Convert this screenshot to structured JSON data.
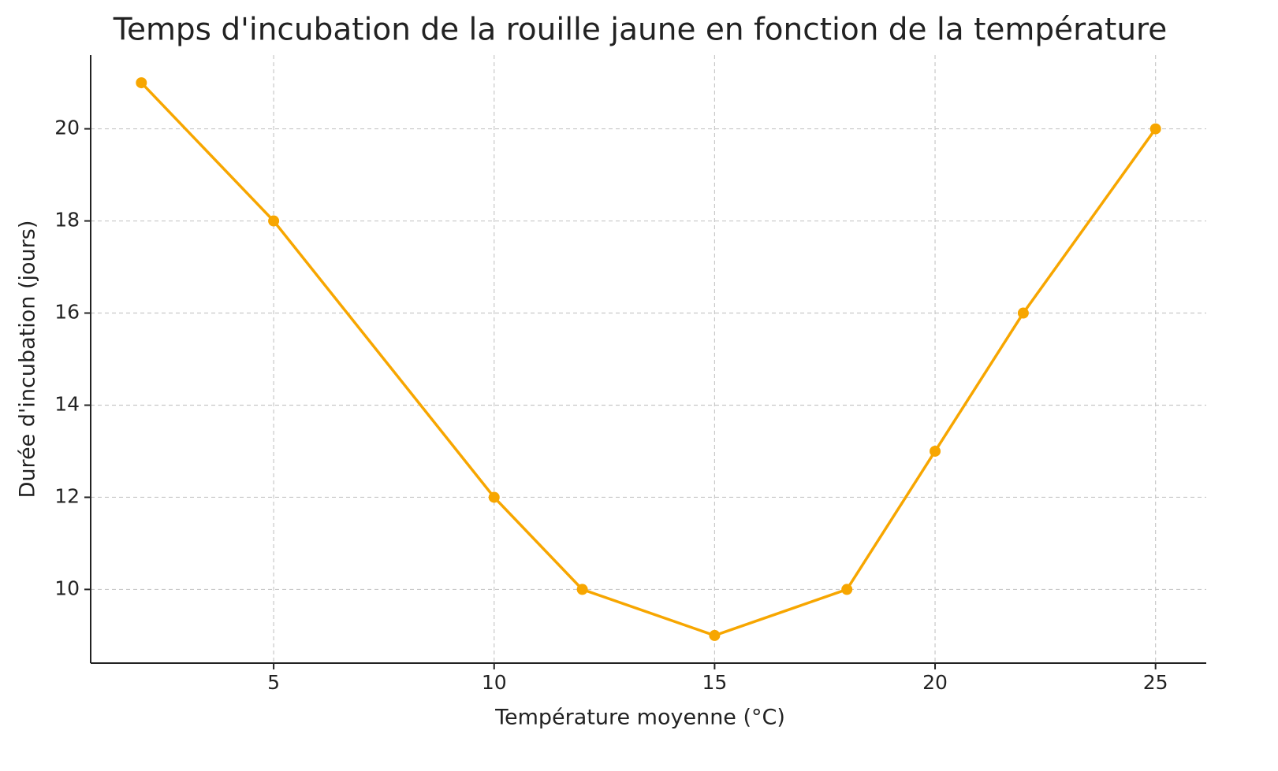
{
  "chart_data": {
    "type": "line",
    "title": "Temps d'incubation de la rouille jaune en fonction de la température",
    "x_label": "Température moyenne (°C)",
    "y_label": "Durée d'incubation (jours)",
    "x": [
      2,
      5,
      10,
      12,
      15,
      18,
      20,
      22,
      25
    ],
    "values": [
      21,
      18,
      12,
      10,
      9,
      10,
      13,
      16,
      20
    ],
    "color": "#f7a600",
    "xlim": [
      0.85,
      26.15
    ],
    "xticks": [
      5,
      10,
      15,
      20,
      25
    ],
    "ylim": [
      8.4,
      21.6
    ],
    "yticks": [
      10,
      12,
      14,
      16,
      18,
      20
    ],
    "grid": true
  }
}
